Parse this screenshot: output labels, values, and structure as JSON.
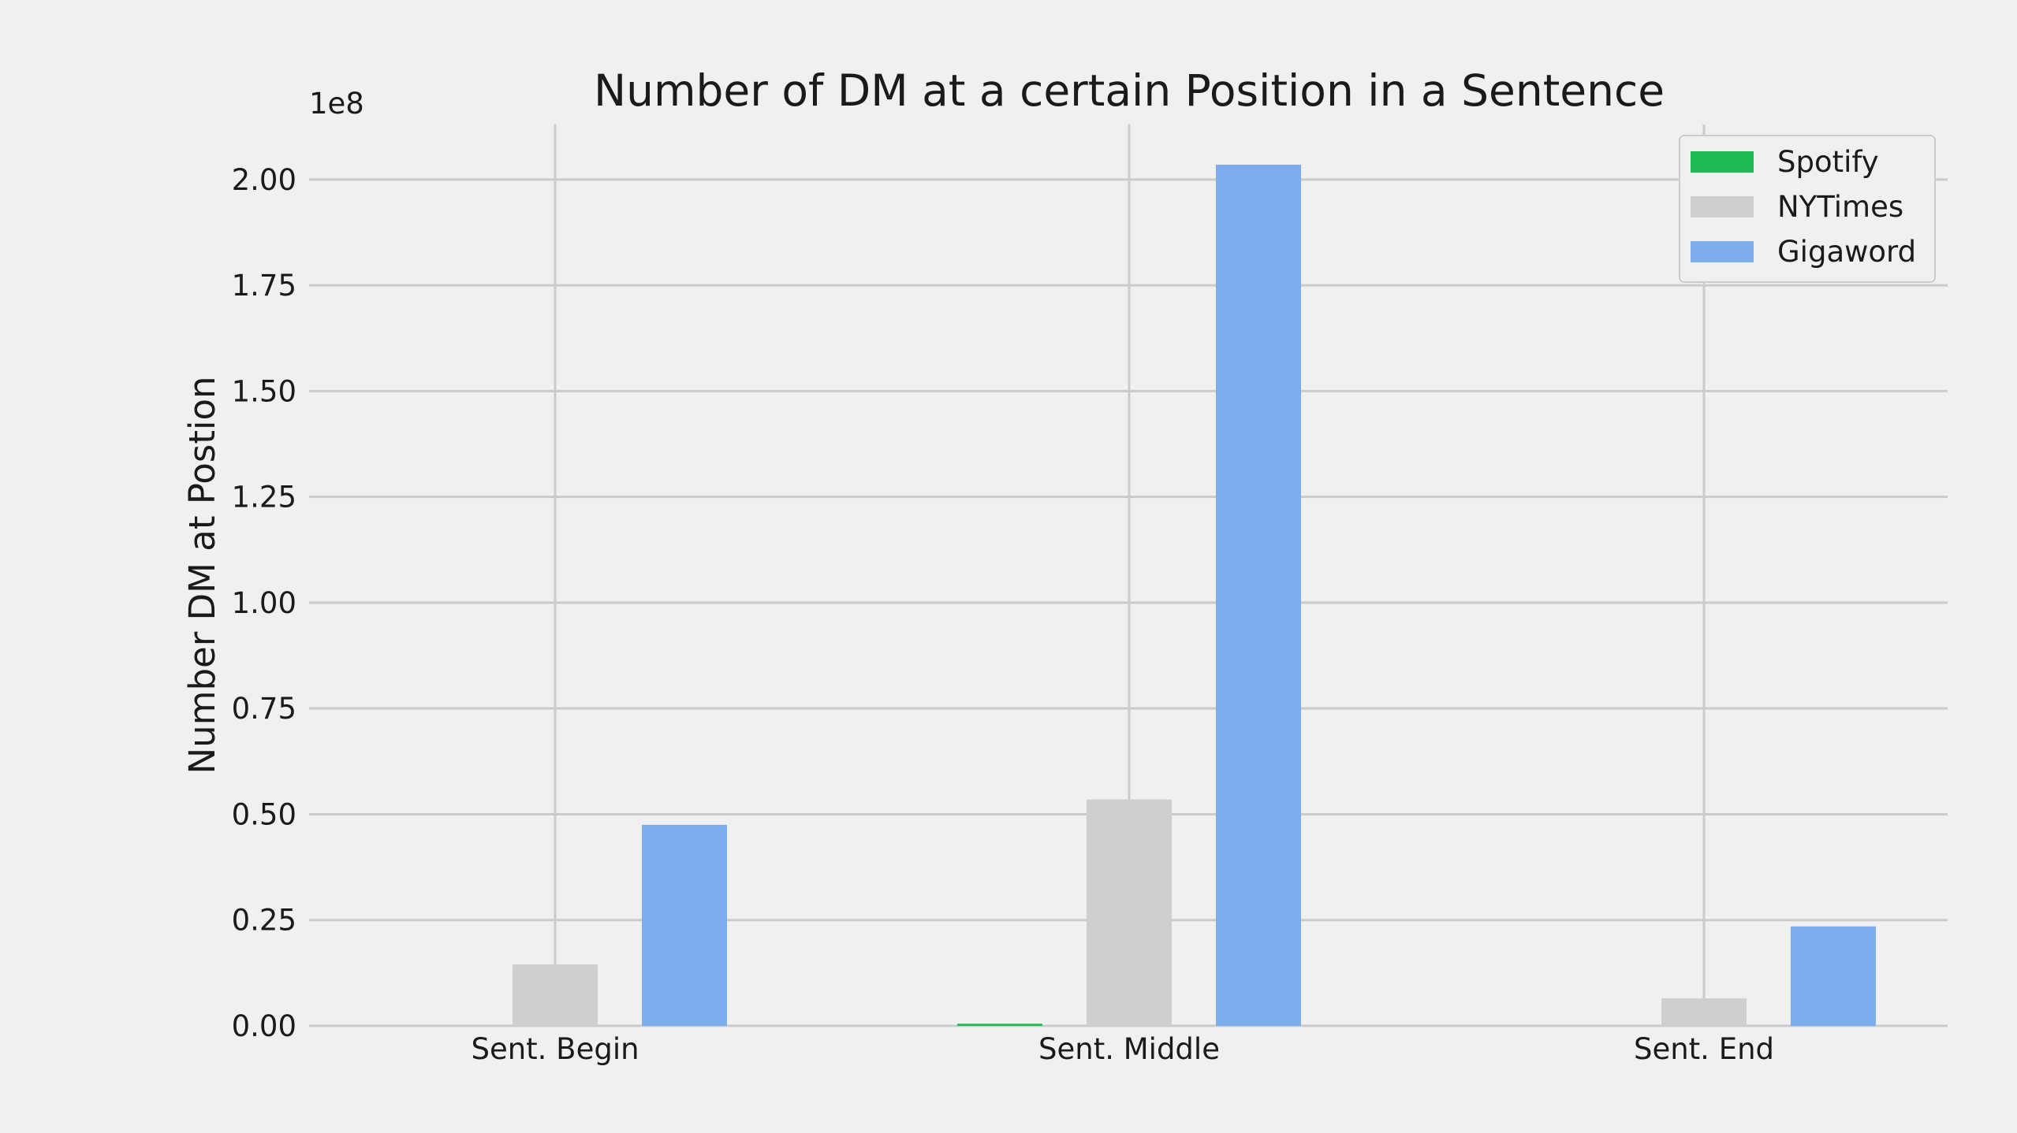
{
  "chart_data": {
    "type": "bar",
    "title": "Number of DM at a certain Position in a Sentence",
    "ylabel": "Number DM at Postion",
    "xlabel": "",
    "y_offset_label": "1e8",
    "categories": [
      "Sent. Begin",
      "Sent. Middle",
      "Sent. End"
    ],
    "series": [
      {
        "name": "Spotify",
        "color": "#1db954",
        "values": [
          0.0,
          0.005,
          0.0
        ]
      },
      {
        "name": "NYTimes",
        "color": "#cfcfcf",
        "values": [
          0.145,
          0.535,
          0.065
        ]
      },
      {
        "name": "Gigaword",
        "color": "#7eadee",
        "values": [
          0.475,
          2.035,
          0.235
        ]
      }
    ],
    "ylim": [
      0,
      2.13
    ],
    "yticks": [
      "0.00",
      "0.25",
      "0.50",
      "0.75",
      "1.00",
      "1.25",
      "1.50",
      "1.75",
      "2.00"
    ],
    "grid": true,
    "legend_position": "top-right",
    "background_color": "#f0f0f0",
    "grid_color": "#cbcbcb"
  }
}
